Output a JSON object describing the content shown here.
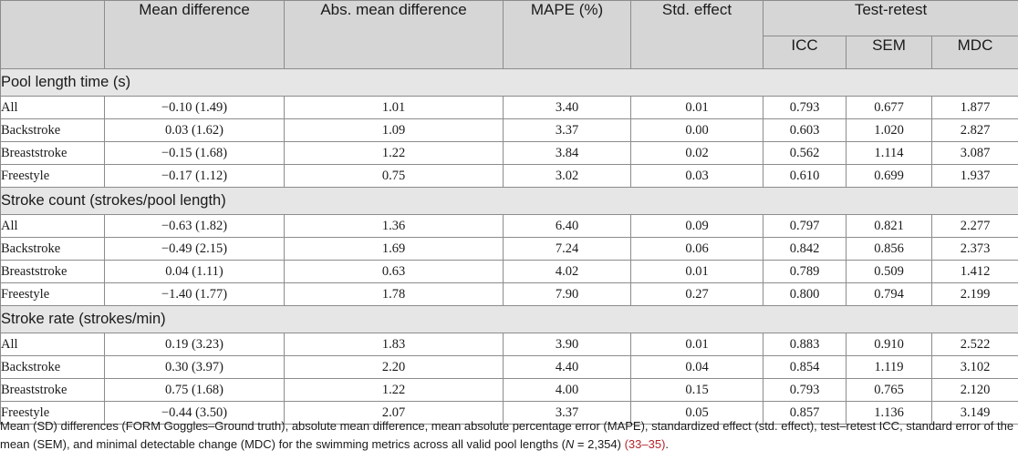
{
  "headers": {
    "mean_difference": "Mean difference",
    "abs_mean_difference": "Abs. mean difference",
    "mape": "MAPE (%)",
    "std_effect": "Std. effect",
    "test_retest": "Test-retest",
    "icc": "ICC",
    "sem": "SEM",
    "mdc": "MDC"
  },
  "groups": [
    {
      "title": "Pool length time (s)",
      "rows": [
        {
          "label": "All",
          "mean_diff": "−0.10 (1.49)",
          "abs_mean_diff": "1.01",
          "mape": "3.40",
          "std_effect": "0.01",
          "icc": "0.793",
          "sem": "0.677",
          "mdc": "1.877"
        },
        {
          "label": "Backstroke",
          "mean_diff": "0.03 (1.62)",
          "abs_mean_diff": "1.09",
          "mape": "3.37",
          "std_effect": "0.00",
          "icc": "0.603",
          "sem": "1.020",
          "mdc": "2.827"
        },
        {
          "label": "Breaststroke",
          "mean_diff": "−0.15 (1.68)",
          "abs_mean_diff": "1.22",
          "mape": "3.84",
          "std_effect": "0.02",
          "icc": "0.562",
          "sem": "1.114",
          "mdc": "3.087"
        },
        {
          "label": "Freestyle",
          "mean_diff": "−0.17 (1.12)",
          "abs_mean_diff": "0.75",
          "mape": "3.02",
          "std_effect": "0.03",
          "icc": "0.610",
          "sem": "0.699",
          "mdc": "1.937"
        }
      ]
    },
    {
      "title": "Stroke count (strokes/pool length)",
      "rows": [
        {
          "label": "All",
          "mean_diff": "−0.63 (1.82)",
          "abs_mean_diff": "1.36",
          "mape": "6.40",
          "std_effect": "0.09",
          "icc": "0.797",
          "sem": "0.821",
          "mdc": "2.277"
        },
        {
          "label": "Backstroke",
          "mean_diff": "−0.49 (2.15)",
          "abs_mean_diff": "1.69",
          "mape": "7.24",
          "std_effect": "0.06",
          "icc": "0.842",
          "sem": "0.856",
          "mdc": "2.373"
        },
        {
          "label": "Breaststroke",
          "mean_diff": "0.04 (1.11)",
          "abs_mean_diff": "0.63",
          "mape": "4.02",
          "std_effect": "0.01",
          "icc": "0.789",
          "sem": "0.509",
          "mdc": "1.412"
        },
        {
          "label": "Freestyle",
          "mean_diff": "−1.40 (1.77)",
          "abs_mean_diff": "1.78",
          "mape": "7.90",
          "std_effect": "0.27",
          "icc": "0.800",
          "sem": "0.794",
          "mdc": "2.199"
        }
      ]
    },
    {
      "title": "Stroke rate (strokes/min)",
      "rows": [
        {
          "label": "All",
          "mean_diff": "0.19 (3.23)",
          "abs_mean_diff": "1.83",
          "mape": "3.90",
          "std_effect": "0.01",
          "icc": "0.883",
          "sem": "0.910",
          "mdc": "2.522"
        },
        {
          "label": "Backstroke",
          "mean_diff": "0.30 (3.97)",
          "abs_mean_diff": "2.20",
          "mape": "4.40",
          "std_effect": "0.04",
          "icc": "0.854",
          "sem": "1.119",
          "mdc": "3.102"
        },
        {
          "label": "Breaststroke",
          "mean_diff": "0.75 (1.68)",
          "abs_mean_diff": "1.22",
          "mape": "4.00",
          "std_effect": "0.15",
          "icc": "0.793",
          "sem": "0.765",
          "mdc": "2.120"
        },
        {
          "label": "Freestyle",
          "mean_diff": "−0.44 (3.50)",
          "abs_mean_diff": "2.07",
          "mape": "3.37",
          "std_effect": "0.05",
          "icc": "0.857",
          "sem": "1.136",
          "mdc": "3.149"
        }
      ]
    }
  ],
  "caption": {
    "text_before_n": "Mean (SD) differences (FORM Goggles–Ground truth), absolute mean difference, mean absolute percentage error (MAPE), standardized effect (std. effect), test–retest ICC, standard error of the mean (SEM), and minimal detectable change (MDC) for the swimming metrics across all valid pool lengths (",
    "n_symbol": "N",
    "n_value": " = 2,354) ",
    "reference": "(33–35)",
    "end": "."
  },
  "colors": {
    "header_bg": "#d6d6d6",
    "group_bg": "#e6e6e6",
    "border": "#8c8c8c",
    "reference": "#b3262d"
  }
}
